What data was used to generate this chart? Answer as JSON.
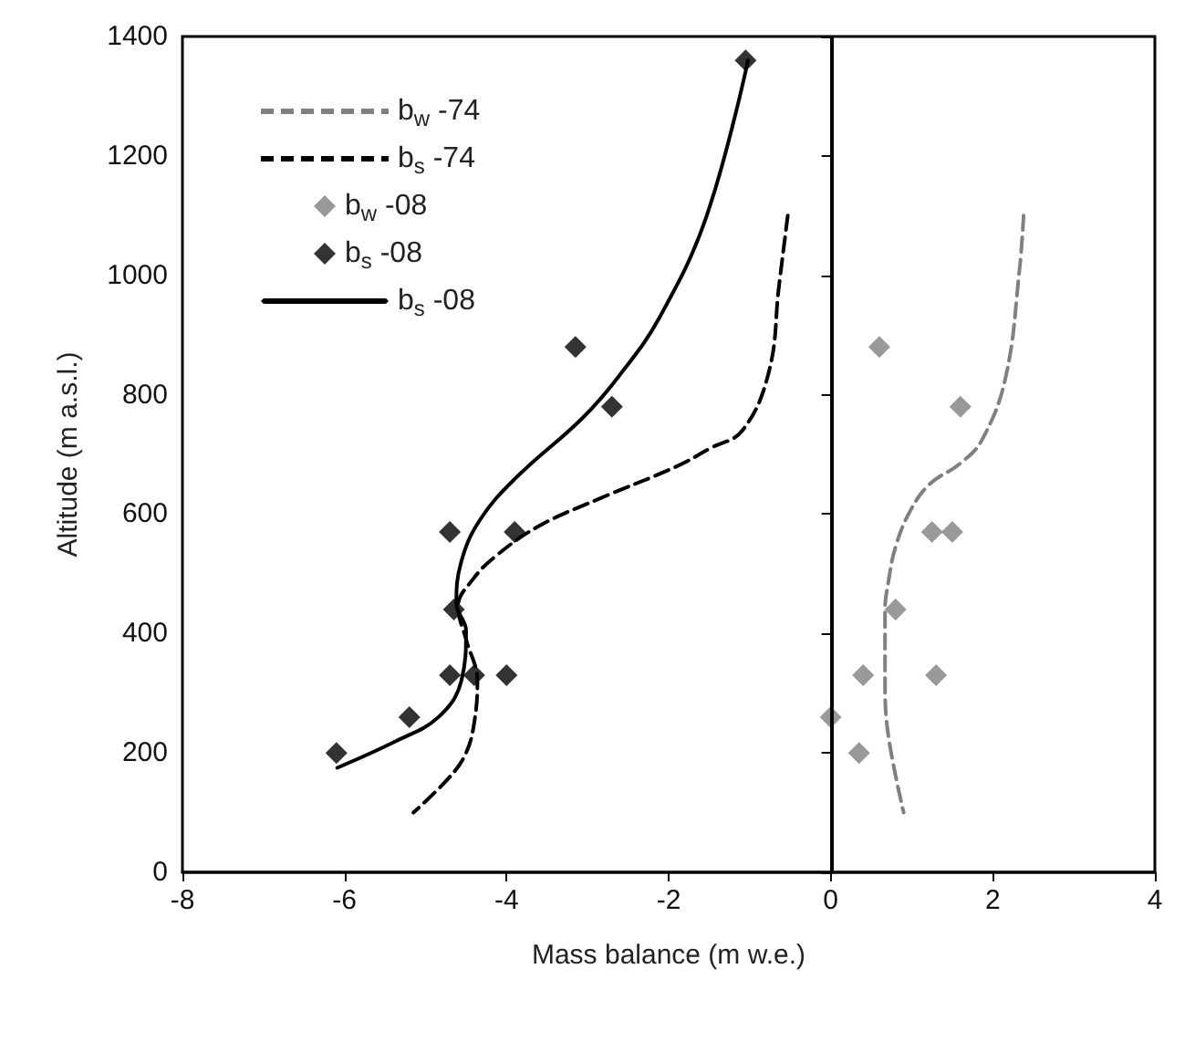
{
  "chart_data": {
    "type": "scatter",
    "xlabel": "Mass balance (m w.e.)",
    "ylabel": "Altitude (m a.s.l.)",
    "xlim": [
      -8,
      4
    ],
    "xticks": [
      -8,
      -6,
      -4,
      -2,
      0,
      2,
      4
    ],
    "ylim": [
      0,
      1400
    ],
    "yticks": [
      0,
      200,
      400,
      600,
      800,
      1000,
      1200,
      1400
    ],
    "grid": false,
    "legend": "top left",
    "ref_lines": [
      {
        "axis": "x",
        "value": 0,
        "color": "#000000",
        "line_style": "solid"
      }
    ],
    "series": [
      {
        "name": "b$_{w}$ -74",
        "type": "line",
        "color": "#808080",
        "line_style": "dashed",
        "marker": "none",
        "x": [
          2.38,
          2.33,
          2.16,
          1.87,
          1.6,
          1.22,
          0.98,
          0.8,
          0.71,
          0.67,
          0.67,
          0.71,
          0.9
        ],
        "values": [
          1100,
          1010,
          830,
          725,
          685,
          650,
          605,
          545,
          485,
          440,
          320,
          230,
          100
        ]
      },
      {
        "name": "b$_{s}$ -74",
        "type": "line",
        "color": "#000000",
        "line_style": "dashed",
        "marker": "none",
        "x": [
          -0.53,
          -0.64,
          -0.76,
          -1.09,
          -1.49,
          -1.9,
          -2.87,
          -3.6,
          -4.13,
          -4.42,
          -4.6,
          -4.5,
          -4.36,
          -4.4,
          -4.5,
          -4.7,
          -5.15
        ],
        "values": [
          1100,
          980,
          840,
          740,
          710,
          680,
          625,
          580,
          530,
          490,
          445,
          390,
          320,
          250,
          200,
          160,
          100
        ]
      },
      {
        "name": "b$_{w}$ -08",
        "type": "scatter",
        "color": "#7f7f7f",
        "marker": "diamond",
        "x": [
          0.6,
          1.6,
          1.25,
          1.5,
          0.8,
          0.4,
          1.3,
          0.0,
          0.35
        ],
        "values": [
          880,
          780,
          570,
          570,
          440,
          330,
          330,
          260,
          200
        ]
      },
      {
        "name": "b$_{s}$ -08",
        "type": "scatter",
        "color": "#000000",
        "marker": "diamond",
        "x": [
          -1.05,
          -3.15,
          -2.7,
          -4.7,
          -3.9,
          -4.65,
          -4.7,
          -4.4,
          -4.0,
          -5.2,
          -6.1
        ],
        "values": [
          1360,
          880,
          780,
          570,
          570,
          440,
          330,
          330,
          330,
          260,
          200
        ]
      },
      {
        "name": "b$_{s}$ -08",
        "type": "line",
        "color": "#000000",
        "line_style": "solid",
        "marker": "none",
        "x": [
          -1.02,
          -1.53,
          -2.11,
          -2.62,
          -3.07,
          -3.89,
          -4.33,
          -4.56,
          -4.62,
          -4.5,
          -4.56,
          -4.84,
          -5.36,
          -6.09
        ],
        "values": [
          1360,
          1100,
          930,
          830,
          760,
          660,
          590,
          520,
          450,
          405,
          320,
          260,
          220,
          175
        ]
      }
    ]
  }
}
